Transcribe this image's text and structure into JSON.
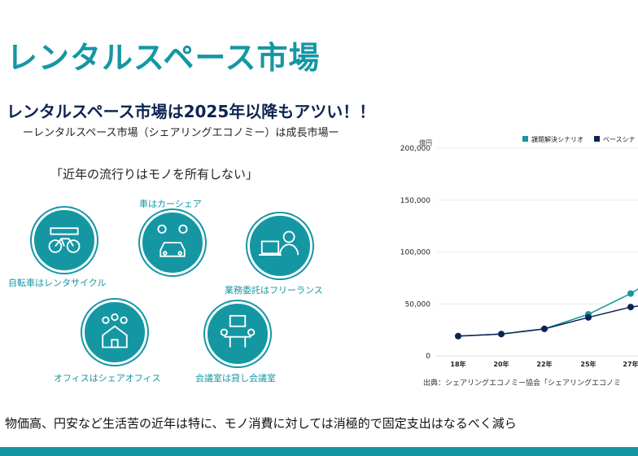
{
  "title": "レンタルスペース市場",
  "headline": "レンタルスペース市場は2025年以降もアツい！！",
  "subheadline": "ーレンタルスペース市場（シェアリングエコノミー）は成長市場ー",
  "quote": "「近年の流行りはモノを所有しない」",
  "icons": [
    {
      "label": "自転車はレンタサイクル",
      "icon": "bicycle-rental-icon"
    },
    {
      "label": "車はカーシェア",
      "icon": "car-share-icon"
    },
    {
      "label": "業務委託はフリーランス",
      "icon": "freelance-laptop-icon"
    },
    {
      "label": "オフィスはシェアオフィス",
      "icon": "shared-office-icon"
    },
    {
      "label": "会議室は貸し会議室",
      "icon": "meeting-room-icon"
    }
  ],
  "bottom_text": "物価高、円安など生活苦の近年は特に、モノ消費に対しては消極的で固定支出はなるべく減ら",
  "source": "出典：シェアリングエコノミー協会「シェアリングエコノミ",
  "colors": {
    "teal": "#1497a3",
    "navy": "#0d2452"
  },
  "chart_data": {
    "type": "line",
    "unit_label": "億円",
    "categories": [
      "18年",
      "20年",
      "22年",
      "25年",
      "27年"
    ],
    "series": [
      {
        "name": "課題解決シナリオ",
        "color": "#1497a3",
        "values": [
          19000,
          21000,
          26000,
          40000,
          60000
        ]
      },
      {
        "name": "ベースシナ",
        "color": "#0d2452",
        "values": [
          19000,
          21000,
          26000,
          37000,
          47000
        ]
      }
    ],
    "ylim": [
      0,
      200000
    ],
    "yticks": [
      "0",
      "50,000",
      "100,000",
      "150,000",
      "200,000"
    ],
    "grid": true,
    "legend": "top-right"
  }
}
